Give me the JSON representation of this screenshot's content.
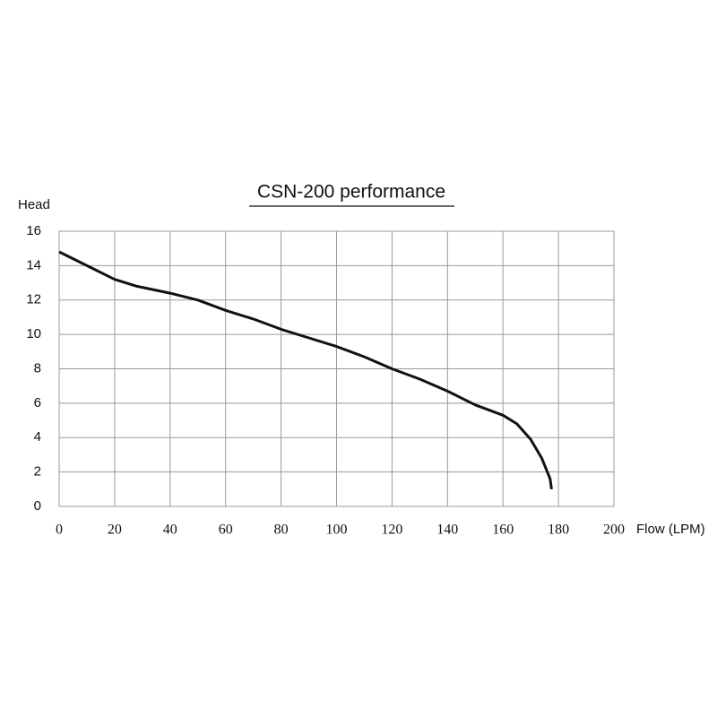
{
  "chart_data": {
    "type": "line",
    "title": "CSN-200 performance",
    "x_label": "Flow (LPM)",
    "y_label": "Head",
    "x": [
      0,
      10,
      20,
      28,
      40,
      50,
      60,
      70,
      80,
      90,
      100,
      110,
      120,
      130,
      140,
      150,
      160,
      165,
      170,
      174,
      177,
      177.5
    ],
    "series": [
      {
        "name": "CSN-200",
        "color": "#111111",
        "values": [
          14.8,
          14.0,
          13.2,
          12.8,
          12.4,
          12.0,
          11.4,
          10.9,
          10.3,
          9.8,
          9.3,
          8.7,
          8.0,
          7.4,
          6.7,
          5.9,
          5.3,
          4.8,
          3.9,
          2.8,
          1.6,
          1.0
        ]
      }
    ],
    "xlim": [
      0,
      200
    ],
    "xticks": [
      0,
      20,
      40,
      60,
      80,
      100,
      120,
      140,
      160,
      180,
      200
    ],
    "ylim": [
      0,
      16
    ],
    "yticks": [
      0,
      2,
      4,
      6,
      8,
      10,
      12,
      14,
      16
    ],
    "grid": true
  }
}
